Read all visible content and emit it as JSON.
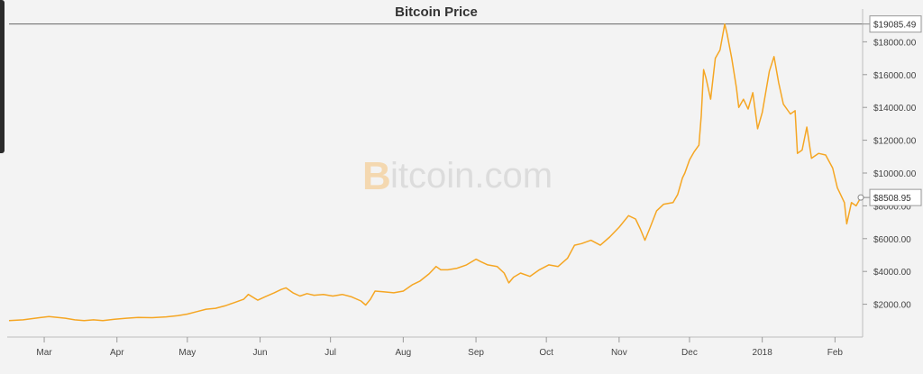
{
  "chart_data": {
    "type": "line",
    "title": "Bitcoin Price",
    "xlabel": "",
    "ylabel": "",
    "ylim": [
      0,
      20000
    ],
    "grid": false,
    "line_color": "#f5a623",
    "y_ticks": [
      {
        "value": 2000,
        "label": "$2000.00"
      },
      {
        "value": 4000,
        "label": "$4000.00"
      },
      {
        "value": 6000,
        "label": "$6000.00"
      },
      {
        "value": 8000,
        "label": "$8000.00"
      },
      {
        "value": 10000,
        "label": "$10000.00"
      },
      {
        "value": 12000,
        "label": "$12000.00"
      },
      {
        "value": 14000,
        "label": "$14000.00"
      },
      {
        "value": 16000,
        "label": "$16000.00"
      },
      {
        "value": 18000,
        "label": "$18000.00"
      }
    ],
    "x_ticks": [
      {
        "date": "2017-03-01",
        "label": "Mar"
      },
      {
        "date": "2017-04-01",
        "label": "Apr"
      },
      {
        "date": "2017-05-01",
        "label": "May"
      },
      {
        "date": "2017-06-01",
        "label": "Jun"
      },
      {
        "date": "2017-07-01",
        "label": "Jul"
      },
      {
        "date": "2017-08-01",
        "label": "Aug"
      },
      {
        "date": "2017-09-01",
        "label": "Sep"
      },
      {
        "date": "2017-10-01",
        "label": "Oct"
      },
      {
        "date": "2017-11-01",
        "label": "Nov"
      },
      {
        "date": "2017-12-01",
        "label": "Dec"
      },
      {
        "date": "2018-01-01",
        "label": "2018"
      },
      {
        "date": "2018-02-01",
        "label": "Feb"
      }
    ],
    "x_range": [
      "2017-02-14",
      "2018-02-12"
    ],
    "max_marker": {
      "value": 19085.49,
      "label": "$19085.49"
    },
    "last_marker": {
      "value": 8508.95,
      "label": "$8508.95"
    },
    "watermark": {
      "b": "B",
      "text": "itcoin.com"
    },
    "series": [
      {
        "x": [
          "2017-02-14",
          "2017-02-20",
          "2017-02-27",
          "2017-03-03",
          "2017-03-10",
          "2017-03-14",
          "2017-03-18",
          "2017-03-22",
          "2017-03-26",
          "2017-03-31",
          "2017-04-05",
          "2017-04-10",
          "2017-04-16",
          "2017-04-22",
          "2017-04-27",
          "2017-05-01",
          "2017-05-05",
          "2017-05-09",
          "2017-05-13",
          "2017-05-17",
          "2017-05-21",
          "2017-05-25",
          "2017-05-27",
          "2017-05-31",
          "2017-06-03",
          "2017-06-07",
          "2017-06-10",
          "2017-06-12",
          "2017-06-15",
          "2017-06-18",
          "2017-06-21",
          "2017-06-24",
          "2017-06-28",
          "2017-07-02",
          "2017-07-06",
          "2017-07-10",
          "2017-07-14",
          "2017-07-16",
          "2017-07-18",
          "2017-07-20",
          "2017-07-24",
          "2017-07-28",
          "2017-08-01",
          "2017-08-05",
          "2017-08-08",
          "2017-08-12",
          "2017-08-15",
          "2017-08-17",
          "2017-08-20",
          "2017-08-24",
          "2017-08-28",
          "2017-09-01",
          "2017-09-03",
          "2017-09-06",
          "2017-09-10",
          "2017-09-13",
          "2017-09-15",
          "2017-09-17",
          "2017-09-20",
          "2017-09-24",
          "2017-09-28",
          "2017-10-02",
          "2017-10-06",
          "2017-10-10",
          "2017-10-13",
          "2017-10-16",
          "2017-10-20",
          "2017-10-24",
          "2017-10-28",
          "2017-11-01",
          "2017-11-05",
          "2017-11-08",
          "2017-11-10",
          "2017-11-12",
          "2017-11-14",
          "2017-11-17",
          "2017-11-20",
          "2017-11-24",
          "2017-11-26",
          "2017-11-28",
          "2017-11-29",
          "2017-12-01",
          "2017-12-03",
          "2017-12-05",
          "2017-12-06",
          "2017-12-07",
          "2017-12-08",
          "2017-12-10",
          "2017-12-12",
          "2017-12-14",
          "2017-12-16",
          "2017-12-17",
          "2017-12-19",
          "2017-12-21",
          "2017-12-22",
          "2017-12-24",
          "2017-12-26",
          "2017-12-28",
          "2017-12-30",
          "2018-01-01",
          "2018-01-04",
          "2018-01-06",
          "2018-01-08",
          "2018-01-10",
          "2018-01-13",
          "2018-01-15",
          "2018-01-16",
          "2018-01-18",
          "2018-01-20",
          "2018-01-22",
          "2018-01-25",
          "2018-01-28",
          "2018-01-31",
          "2018-02-02",
          "2018-02-03",
          "2018-02-05",
          "2018-02-06",
          "2018-02-08",
          "2018-02-10",
          "2018-02-12"
        ],
        "y": [
          1000,
          1050,
          1180,
          1250,
          1150,
          1050,
          1000,
          1050,
          1000,
          1080,
          1150,
          1200,
          1180,
          1230,
          1300,
          1400,
          1550,
          1700,
          1750,
          1900,
          2100,
          2300,
          2600,
          2250,
          2450,
          2700,
          2900,
          3000,
          2700,
          2500,
          2650,
          2550,
          2600,
          2500,
          2600,
          2450,
          2200,
          1950,
          2300,
          2800,
          2750,
          2700,
          2800,
          3200,
          3400,
          3850,
          4300,
          4100,
          4100,
          4200,
          4400,
          4750,
          4600,
          4400,
          4300,
          3900,
          3300,
          3650,
          3900,
          3700,
          4100,
          4400,
          4300,
          4800,
          5600,
          5700,
          5900,
          5600,
          6100,
          6700,
          7400,
          7200,
          6600,
          5900,
          6600,
          7700,
          8100,
          8200,
          8700,
          9700,
          10000,
          10800,
          11300,
          11700,
          13500,
          16300,
          15800,
          14500,
          17000,
          17500,
          19085,
          18500,
          17000,
          15200,
          14000,
          14500,
          13900,
          14900,
          12700,
          13700,
          16200,
          17100,
          15500,
          14200,
          13600,
          13800,
          11200,
          11400,
          12800,
          10900,
          11200,
          11100,
          10300,
          9100,
          8800,
          8200,
          6900,
          8200,
          8000,
          8509
        ]
      }
    ]
  }
}
